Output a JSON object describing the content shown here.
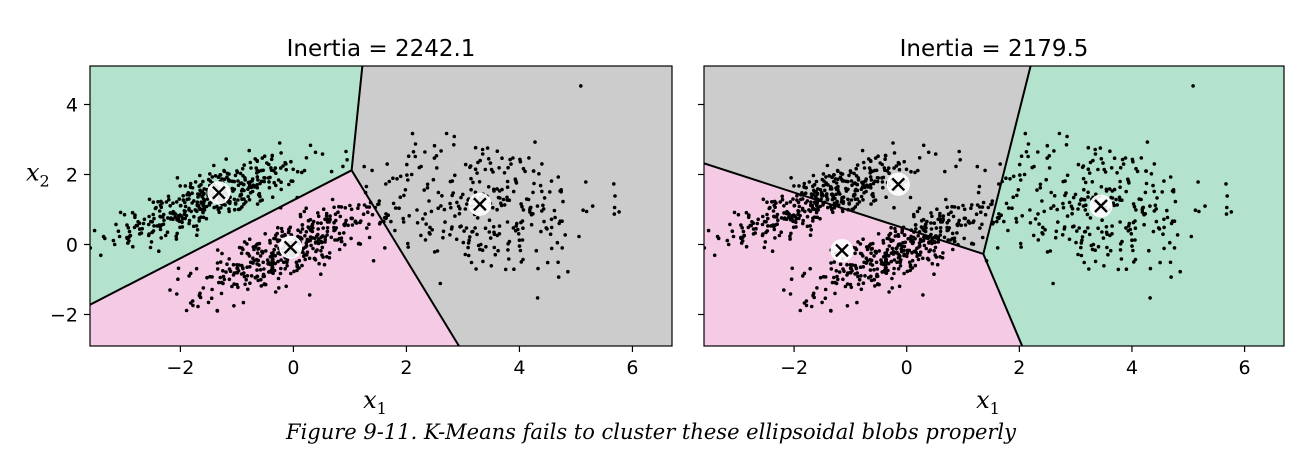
{
  "caption": "Figure 9-11. K-Means fails to cluster these ellipsoidal blobs properly",
  "chart_data": [
    {
      "type": "scatter",
      "title": "Inertia = 2242.1",
      "xlabel": "x1",
      "ylabel": "x2",
      "xlim": [
        -3.6,
        6.7
      ],
      "ylim": [
        -2.9,
        5.1
      ],
      "xticks": [
        -2,
        0,
        2,
        4,
        6
      ],
      "yticks": [
        -2,
        0,
        2,
        4
      ],
      "grid": false,
      "region_colors": {
        "green": "#b3e2cd",
        "pink": "#f4cae4",
        "gray": "#cccccc"
      },
      "regions": [
        {
          "color": "green",
          "polygon": [
            [
              -3.6,
              5.1
            ],
            [
              1.22,
              5.1
            ],
            [
              1.03,
              2.12
            ],
            [
              -3.6,
              -1.72
            ]
          ]
        },
        {
          "color": "gray",
          "polygon": [
            [
              1.22,
              5.1
            ],
            [
              6.7,
              5.1
            ],
            [
              6.7,
              -2.9
            ],
            [
              2.93,
              -2.9
            ],
            [
              1.03,
              2.12
            ]
          ]
        },
        {
          "color": "pink",
          "polygon": [
            [
              -3.6,
              -1.72
            ],
            [
              1.03,
              2.12
            ],
            [
              2.93,
              -2.9
            ],
            [
              -3.6,
              -2.9
            ]
          ]
        }
      ],
      "centroids": [
        [
          -1.32,
          1.48
        ],
        [
          -0.05,
          -0.08
        ],
        [
          3.3,
          1.15
        ]
      ]
    },
    {
      "type": "scatter",
      "title": "Inertia = 2179.5",
      "xlabel": "x1",
      "ylabel": "",
      "xlim": [
        -3.6,
        6.7
      ],
      "ylim": [
        -2.9,
        5.1
      ],
      "xticks": [
        -2,
        0,
        2,
        4,
        6
      ],
      "yticks": [
        -2,
        0,
        2,
        4
      ],
      "grid": false,
      "region_colors": {
        "green": "#b3e2cd",
        "pink": "#f4cae4",
        "gray": "#cccccc"
      },
      "regions": [
        {
          "color": "gray",
          "polygon": [
            [
              -3.6,
              5.1
            ],
            [
              2.2,
              5.1
            ],
            [
              1.36,
              -0.27
            ],
            [
              -3.6,
              2.32
            ]
          ]
        },
        {
          "color": "green",
          "polygon": [
            [
              2.2,
              5.1
            ],
            [
              6.7,
              5.1
            ],
            [
              6.7,
              -2.9
            ],
            [
              2.05,
              -2.9
            ],
            [
              1.36,
              -0.27
            ]
          ]
        },
        {
          "color": "pink",
          "polygon": [
            [
              -3.6,
              2.32
            ],
            [
              1.36,
              -0.27
            ],
            [
              2.05,
              -2.9
            ],
            [
              -3.6,
              -2.9
            ]
          ]
        }
      ],
      "centroids": [
        [
          -0.15,
          1.72
        ],
        [
          -1.15,
          -0.17
        ],
        [
          3.45,
          1.1
        ]
      ]
    }
  ],
  "point_cloud": {
    "blobs": [
      {
        "center": [
          -1.5,
          1.3
        ],
        "count": 400,
        "major_sd": 1.0,
        "minor_sd": 0.32,
        "angle_deg": 34
      },
      {
        "center": [
          -0.05,
          -0.15
        ],
        "count": 400,
        "major_sd": 1.0,
        "minor_sd": 0.32,
        "angle_deg": 37
      },
      {
        "center": [
          3.35,
          1.1
        ],
        "count": 300,
        "sd_x": 1.05,
        "sd_y": 1.0
      }
    ]
  }
}
